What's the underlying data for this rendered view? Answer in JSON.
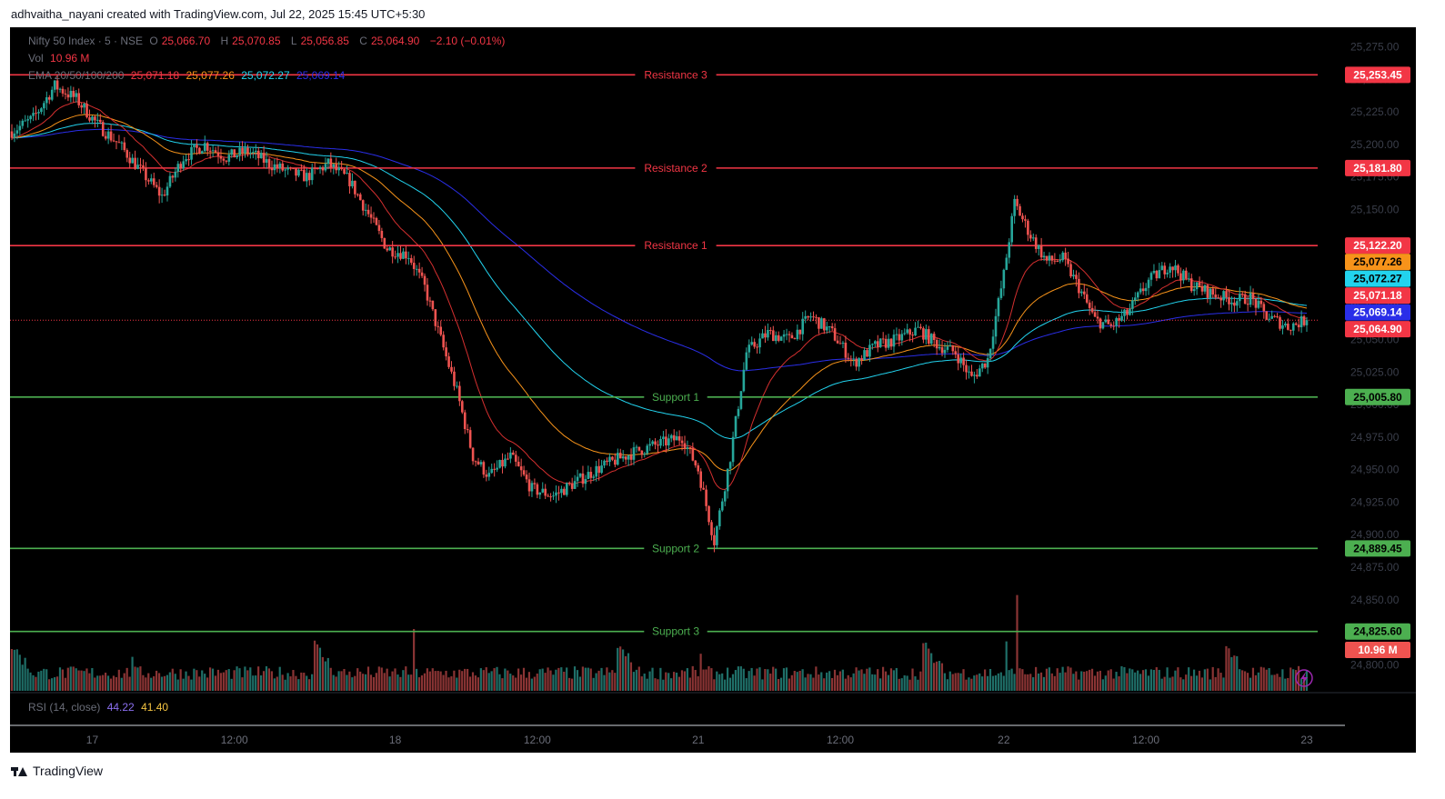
{
  "caption": "adhvaitha_nayani created with TradingView.com, Jul 22, 2025 15:45 UTC+5:30",
  "legend": {
    "symbol": "Nifty 50 Index · 5 · NSE",
    "o_label": "O",
    "o": "25,066.70",
    "h_label": "H",
    "h": "25,070.85",
    "l_label": "L",
    "l": "25,056.85",
    "c_label": "C",
    "c": "25,064.90",
    "change": "−2.10 (−0.01%)",
    "vol_label": "Vol",
    "vol": "10.96 M",
    "ema_label": "EMA 20/50/100/200",
    "ema20": "25,071.18",
    "ema50": "25,077.26",
    "ema100": "25,072.27",
    "ema200": "25,069.14",
    "rsi_label": "RSI (14, close)",
    "rsi": "44.22",
    "rsi_ma": "41.40"
  },
  "logo_text": "TradingView",
  "colors": {
    "background": "#000000",
    "up": "#26a69a",
    "down": "#ef5350",
    "resistance": "#f23645",
    "support": "#4caf50",
    "ema20": "#d32f2f",
    "ema50": "#f7931a",
    "ema100": "#22d3ee",
    "ema200": "#2a2ee8"
  },
  "chart_data": {
    "type": "candlestick",
    "y_range": [
      24780,
      25290
    ],
    "y_ticks": [
      24800,
      24825,
      24850,
      24875,
      24900,
      24925,
      24950,
      24975,
      25000,
      25025,
      25050,
      25075,
      25100,
      25125,
      25150,
      25175,
      25200,
      25225,
      25250,
      25275
    ],
    "y_tick_labels": [
      "24,800.00",
      "24,825.00",
      "24,850.00",
      "24,875.00",
      "24,900.00",
      "24,925.00",
      "24,950.00",
      "24,975.00",
      "25,000.00",
      "25,025.00",
      "25,050.00",
      "25,075.00",
      "25,100.00",
      "25,125.00",
      "25,150.00",
      "25,175.00",
      "25,200.00",
      "25,225.00",
      "25,250.00",
      "25,275.00"
    ],
    "x_labels": [
      {
        "label": "17",
        "bar": 30
      },
      {
        "label": "12:00",
        "bar": 83
      },
      {
        "label": "18",
        "bar": 143
      },
      {
        "label": "12:00",
        "bar": 196
      },
      {
        "label": "21",
        "bar": 256
      },
      {
        "label": "12:00",
        "bar": 309
      },
      {
        "label": "22",
        "bar": 370
      },
      {
        "label": "12:00",
        "bar": 423
      },
      {
        "label": "23",
        "bar": 483
      }
    ],
    "bar_count": 484,
    "levels": [
      {
        "name": "Resistance 3",
        "value": 25253.45,
        "label": "25,253.45",
        "kind": "resistance"
      },
      {
        "name": "Resistance 2",
        "value": 25181.8,
        "label": "25,181.80",
        "kind": "resistance"
      },
      {
        "name": "Resistance 1",
        "value": 25122.2,
        "label": "25,122.20",
        "kind": "resistance"
      },
      {
        "name": "Support 1",
        "value": 25005.8,
        "label": "25,005.80",
        "kind": "support"
      },
      {
        "name": "Support 2",
        "value": 24889.45,
        "label": "24,889.45",
        "kind": "support"
      },
      {
        "name": "Support 3",
        "value": 24825.6,
        "label": "24,825.60",
        "kind": "support"
      }
    ],
    "price_tags": [
      {
        "label": "25,077.26",
        "value": 25077.26,
        "color": "#f7931a"
      },
      {
        "label": "25,072.27",
        "value": 25072.27,
        "color": "#22d3ee"
      },
      {
        "label": "25,071.18",
        "value": 25071.18,
        "color": "#f23645"
      },
      {
        "label": "25,069.14",
        "value": 25069.14,
        "color": "#2a2ee8"
      },
      {
        "label": "25,064.90",
        "value": 25064.9,
        "color": "#f23645"
      }
    ],
    "volume_tag": "10.96 M",
    "last_price": 25064.9,
    "price_path": [
      [
        0,
        25210
      ],
      [
        8,
        25220
      ],
      [
        16,
        25245
      ],
      [
        24,
        25235
      ],
      [
        32,
        25215
      ],
      [
        40,
        25200
      ],
      [
        48,
        25180
      ],
      [
        56,
        25160
      ],
      [
        64,
        25190
      ],
      [
        72,
        25200
      ],
      [
        80,
        25190
      ],
      [
        88,
        25195
      ],
      [
        96,
        25185
      ],
      [
        104,
        25178
      ],
      [
        110,
        25175
      ],
      [
        118,
        25185
      ],
      [
        126,
        25172
      ],
      [
        132,
        25150
      ],
      [
        140,
        25120
      ],
      [
        148,
        25115
      ],
      [
        154,
        25090
      ],
      [
        160,
        25050
      ],
      [
        166,
        25010
      ],
      [
        172,
        24960
      ],
      [
        178,
        24945
      ],
      [
        186,
        24960
      ],
      [
        194,
        24935
      ],
      [
        202,
        24930
      ],
      [
        210,
        24940
      ],
      [
        218,
        24950
      ],
      [
        226,
        24958
      ],
      [
        234,
        24965
      ],
      [
        242,
        24970
      ],
      [
        250,
        24975
      ],
      [
        256,
        24950
      ],
      [
        262,
        24895
      ],
      [
        268,
        24960
      ],
      [
        274,
        25040
      ],
      [
        282,
        25055
      ],
      [
        290,
        25050
      ],
      [
        298,
        25068
      ],
      [
        306,
        25055
      ],
      [
        314,
        25032
      ],
      [
        322,
        25045
      ],
      [
        330,
        25050
      ],
      [
        338,
        25058
      ],
      [
        346,
        25045
      ],
      [
        352,
        25040
      ],
      [
        358,
        25020
      ],
      [
        364,
        25035
      ],
      [
        370,
        25100
      ],
      [
        374,
        25155
      ],
      [
        380,
        25130
      ],
      [
        386,
        25110
      ],
      [
        392,
        25112
      ],
      [
        398,
        25090
      ],
      [
        404,
        25065
      ],
      [
        410,
        25060
      ],
      [
        416,
        25070
      ],
      [
        424,
        25095
      ],
      [
        432,
        25108
      ],
      [
        440,
        25092
      ],
      [
        448,
        25085
      ],
      [
        456,
        25080
      ],
      [
        462,
        25082
      ],
      [
        468,
        25068
      ],
      [
        476,
        25060
      ],
      [
        483,
        25065
      ]
    ],
    "volume_spikes": [
      {
        "bar": 45,
        "value": 0.55
      },
      {
        "bar": 150,
        "value": 1.0
      },
      {
        "bar": 257,
        "value": 0.6
      },
      {
        "bar": 371,
        "value": 0.8
      },
      {
        "bar": 375,
        "value": 1.55
      },
      {
        "bar": 480,
        "value": 0.4
      }
    ]
  }
}
